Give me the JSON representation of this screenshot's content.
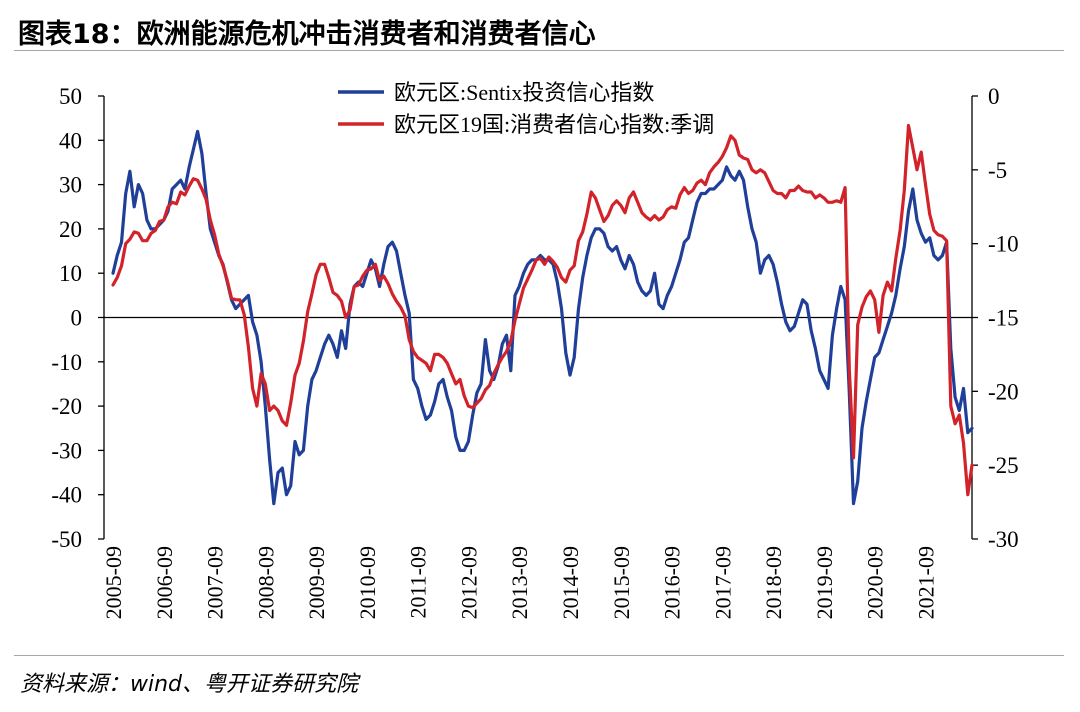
{
  "source": "资料来源：wind、粤开证券研究院",
  "chart_data": {
    "type": "line",
    "title": "图表18：欧洲能源危机冲击消费者和消费者信心",
    "legend_position": "top-center",
    "grid": false,
    "zero_line": true,
    "x": [
      "2005-09",
      "2005-10",
      "2005-11",
      "2005-12",
      "2006-01",
      "2006-02",
      "2006-03",
      "2006-04",
      "2006-05",
      "2006-06",
      "2006-07",
      "2006-08",
      "2006-09",
      "2006-10",
      "2006-11",
      "2006-12",
      "2007-01",
      "2007-02",
      "2007-03",
      "2007-04",
      "2007-05",
      "2007-06",
      "2007-07",
      "2007-08",
      "2007-09",
      "2007-10",
      "2007-11",
      "2007-12",
      "2008-01",
      "2008-02",
      "2008-03",
      "2008-04",
      "2008-05",
      "2008-06",
      "2008-07",
      "2008-08",
      "2008-09",
      "2008-10",
      "2008-11",
      "2008-12",
      "2009-01",
      "2009-02",
      "2009-03",
      "2009-04",
      "2009-05",
      "2009-06",
      "2009-07",
      "2009-08",
      "2009-09",
      "2009-10",
      "2009-11",
      "2009-12",
      "2010-01",
      "2010-02",
      "2010-03",
      "2010-04",
      "2010-05",
      "2010-06",
      "2010-07",
      "2010-08",
      "2010-09",
      "2010-10",
      "2010-11",
      "2010-12",
      "2011-01",
      "2011-02",
      "2011-03",
      "2011-04",
      "2011-05",
      "2011-06",
      "2011-07",
      "2011-08",
      "2011-09",
      "2011-10",
      "2011-11",
      "2011-12",
      "2012-01",
      "2012-02",
      "2012-03",
      "2012-04",
      "2012-05",
      "2012-06",
      "2012-07",
      "2012-08",
      "2012-09",
      "2012-10",
      "2012-11",
      "2012-12",
      "2013-01",
      "2013-02",
      "2013-03",
      "2013-04",
      "2013-05",
      "2013-06",
      "2013-07",
      "2013-08",
      "2013-09",
      "2013-10",
      "2013-11",
      "2013-12",
      "2014-01",
      "2014-02",
      "2014-03",
      "2014-04",
      "2014-05",
      "2014-06",
      "2014-07",
      "2014-08",
      "2014-09",
      "2014-10",
      "2014-11",
      "2014-12",
      "2015-01",
      "2015-02",
      "2015-03",
      "2015-04",
      "2015-05",
      "2015-06",
      "2015-07",
      "2015-08",
      "2015-09",
      "2015-10",
      "2015-11",
      "2015-12",
      "2016-01",
      "2016-02",
      "2016-03",
      "2016-04",
      "2016-05",
      "2016-06",
      "2016-07",
      "2016-08",
      "2016-09",
      "2016-10",
      "2016-11",
      "2016-12",
      "2017-01",
      "2017-02",
      "2017-03",
      "2017-04",
      "2017-05",
      "2017-06",
      "2017-07",
      "2017-08",
      "2017-09",
      "2017-10",
      "2017-11",
      "2017-12",
      "2018-01",
      "2018-02",
      "2018-03",
      "2018-04",
      "2018-05",
      "2018-06",
      "2018-07",
      "2018-08",
      "2018-09",
      "2018-10",
      "2018-11",
      "2018-12",
      "2019-01",
      "2019-02",
      "2019-03",
      "2019-04",
      "2019-05",
      "2019-06",
      "2019-07",
      "2019-08",
      "2019-09",
      "2019-10",
      "2019-11",
      "2019-12",
      "2020-01",
      "2020-02",
      "2020-03",
      "2020-04",
      "2020-05",
      "2020-06",
      "2020-07",
      "2020-08",
      "2020-09",
      "2020-10",
      "2020-11",
      "2020-12",
      "2021-01",
      "2021-02",
      "2021-03",
      "2021-04",
      "2021-05",
      "2021-06",
      "2021-07",
      "2021-08",
      "2021-09",
      "2021-10",
      "2021-11",
      "2021-12",
      "2022-01",
      "2022-02",
      "2022-03",
      "2022-04",
      "2022-05",
      "2022-06",
      "2022-07",
      "2022-08"
    ],
    "x_tick_labels": [
      "2005-09",
      "2006-09",
      "2007-09",
      "2008-09",
      "2009-09",
      "2010-09",
      "2011-09",
      "2012-09",
      "2013-09",
      "2014-09",
      "2015-09",
      "2016-09",
      "2017-09",
      "2018-09",
      "2019-09",
      "2020-09",
      "2021-09"
    ],
    "y_left": {
      "min": -50,
      "max": 50,
      "ticks": [
        50,
        40,
        30,
        20,
        10,
        0,
        -10,
        -20,
        -30,
        -40,
        -50
      ]
    },
    "y_right": {
      "min": -30,
      "max": 0,
      "ticks": [
        0,
        -5,
        -10,
        -15,
        -20,
        -25,
        -30
      ]
    },
    "series": [
      {
        "name": "欧元区:Sentix投资信心指数",
        "axis": "left",
        "color": "#1f3f99",
        "values": [
          10,
          14,
          17,
          28,
          33,
          25,
          30,
          28,
          22,
          20,
          20,
          21,
          22,
          24,
          29,
          30,
          31,
          29,
          34,
          38,
          42,
          37,
          28,
          20,
          17,
          14,
          12,
          8,
          4,
          2,
          3,
          4,
          5,
          -1,
          -4,
          -10,
          -20,
          -32,
          -42,
          -35,
          -34,
          -40,
          -38,
          -28,
          -31,
          -30,
          -20,
          -14,
          -12,
          -9,
          -6,
          -4,
          -6,
          -9,
          -3,
          -7,
          3,
          7,
          8,
          7,
          10,
          13,
          11,
          7,
          12,
          16,
          17,
          15,
          10,
          5,
          1,
          -14,
          -16,
          -20,
          -23,
          -22,
          -19,
          -15,
          -14,
          -18,
          -21,
          -27,
          -30,
          -30,
          -28,
          -22,
          -17,
          -15,
          -5,
          -12,
          -14,
          -11,
          -6,
          -4,
          -12,
          5,
          7,
          10,
          12,
          13,
          13,
          14,
          13,
          13,
          12,
          8,
          2,
          -8,
          -13,
          -9,
          2,
          9,
          14,
          18,
          20,
          20,
          19,
          16,
          15,
          16,
          13,
          11,
          14,
          12,
          8,
          6,
          5,
          6,
          10,
          3,
          2,
          5,
          7,
          10,
          13,
          17,
          18,
          22,
          26,
          28,
          28,
          29,
          29,
          30,
          31,
          34,
          32,
          31,
          33,
          31,
          25,
          20,
          17,
          10,
          13,
          14,
          12,
          8,
          3,
          -1,
          -3,
          -2,
          1,
          4,
          3,
          -3,
          -7,
          -12,
          -14,
          -16,
          -4,
          2,
          7,
          4,
          -17,
          -42,
          -37,
          -25,
          -19,
          -14,
          -9,
          -8,
          -5,
          -2,
          1,
          5,
          11,
          16,
          24,
          29,
          22,
          19,
          17,
          18,
          14,
          13,
          14,
          17,
          -7,
          -18,
          -21,
          -16,
          -26,
          -25
        ]
      },
      {
        "name": "欧元区19国:消费者信心指数:季调",
        "axis": "right",
        "color": "#d2232a",
        "values": [
          -12.8,
          -12.3,
          -11.5,
          -10.0,
          -9.7,
          -9.2,
          -9.3,
          -9.8,
          -9.8,
          -9.3,
          -9.1,
          -8.5,
          -8.4,
          -7.5,
          -7.2,
          -7.3,
          -6.5,
          -6.7,
          -6.1,
          -5.6,
          -5.7,
          -6.3,
          -7.0,
          -8.4,
          -9.4,
          -10.7,
          -11.5,
          -12.5,
          -13.7,
          -13.8,
          -13.8,
          -14.8,
          -17.0,
          -19.8,
          -21.0,
          -18.8,
          -19.5,
          -21.3,
          -21.0,
          -21.3,
          -22.0,
          -22.3,
          -20.8,
          -18.9,
          -18.1,
          -16.6,
          -14.6,
          -13.4,
          -12.1,
          -11.4,
          -11.4,
          -12.3,
          -13.3,
          -13.5,
          -13.9,
          -15.0,
          -14.5,
          -12.9,
          -12.8,
          -12.2,
          -11.8,
          -11.7,
          -11.4,
          -12.5,
          -12.2,
          -12.7,
          -13.4,
          -13.9,
          -14.3,
          -14.9,
          -16.5,
          -17.3,
          -17.7,
          -17.9,
          -18.1,
          -18.6,
          -17.5,
          -17.5,
          -17.7,
          -18.1,
          -18.8,
          -19.5,
          -19.2,
          -20.3,
          -21.0,
          -21.1,
          -20.8,
          -20.5,
          -19.9,
          -19.6,
          -18.8,
          -18.2,
          -17.7,
          -17.3,
          -16.6,
          -15.2,
          -14.1,
          -13.0,
          -12.4,
          -11.8,
          -11.1,
          -11.0,
          -11.4,
          -10.9,
          -11.2,
          -11.6,
          -12.3,
          -12.6,
          -11.8,
          -11.5,
          -9.8,
          -9.2,
          -8.0,
          -6.5,
          -6.9,
          -7.7,
          -8.5,
          -8.1,
          -7.4,
          -7.1,
          -7.4,
          -7.9,
          -6.9,
          -6.5,
          -7.2,
          -7.9,
          -8.2,
          -8.4,
          -8.1,
          -8.4,
          -8.2,
          -7.7,
          -7.5,
          -7.6,
          -6.7,
          -6.2,
          -6.6,
          -6.4,
          -5.9,
          -5.7,
          -6.0,
          -5.2,
          -4.8,
          -4.5,
          -4.1,
          -3.5,
          -2.7,
          -3.0,
          -4.0,
          -4.2,
          -4.3,
          -5.0,
          -5.2,
          -5.0,
          -5.2,
          -5.8,
          -6.4,
          -6.6,
          -6.6,
          -6.9,
          -6.4,
          -6.4,
          -6.1,
          -6.4,
          -6.5,
          -6.5,
          -6.9,
          -6.7,
          -6.9,
          -7.2,
          -7.2,
          -7.1,
          -7.2,
          -6.2,
          -18.5,
          -24.5,
          -15.5,
          -14.3,
          -13.6,
          -13.2,
          -13.8,
          -16.0,
          -13.5,
          -12.6,
          -13.2,
          -11.0,
          -9.1,
          -6.4,
          -2.0,
          -3.5,
          -5.0,
          -3.8,
          -6.0,
          -8.0,
          -9.1,
          -9.4,
          -9.5,
          -9.8,
          -21.0,
          -22.2,
          -21.6,
          -23.5,
          -27.0,
          -25.0
        ]
      }
    ]
  }
}
